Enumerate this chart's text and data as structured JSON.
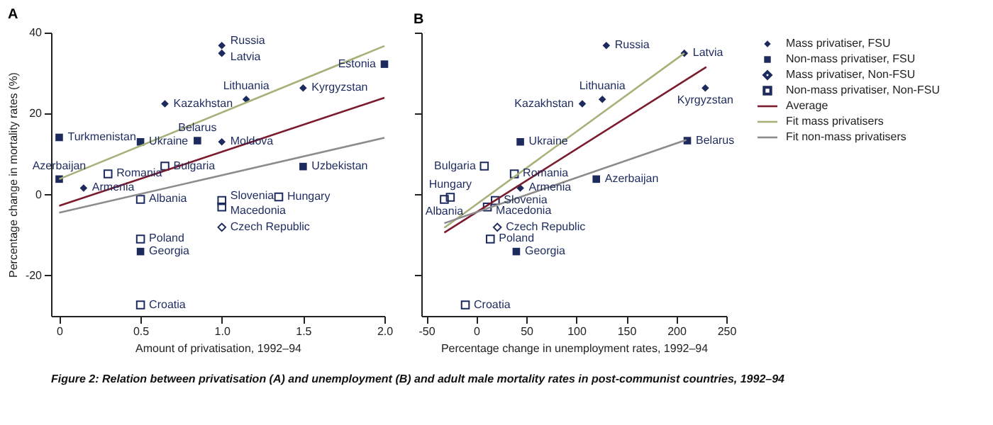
{
  "chart_data": [
    {
      "type": "scatter",
      "title": "A",
      "xlabel": "Amount of privatisation, 1992–94",
      "ylabel": "Percentage change in mortality rates (%)",
      "xlim": [
        -0.05,
        2.0
      ],
      "ylim": [
        -30,
        40
      ],
      "xticks": [
        0,
        0.5,
        {
          "value": 1.0,
          "label": "1.0"
        },
        1.5,
        {
          "value": 2.0,
          "label": "2.0"
        }
      ],
      "yticks": [
        -20,
        0,
        20,
        40
      ],
      "series": [
        {
          "color": "#1c2a5e",
          "marker": "diamond",
          "x": [
            1.0,
            1.0,
            1.15,
            1.5,
            0.65,
            1.0,
            0.15
          ],
          "values": [
            36.8,
            34.9,
            23.5,
            26.3,
            22.4,
            13.0,
            1.6
          ]
        },
        {
          "color": "#1c2a5e",
          "marker": "square",
          "x": [
            2.0,
            0,
            0.5,
            0.85,
            1.5,
            0,
            0.5
          ],
          "values": [
            32.2,
            14.1,
            13.0,
            13.3,
            6.9,
            3.8,
            -14.1
          ]
        },
        {
          "color": "#1c2a5e",
          "marker": "diamond",
          "x": [
            1.0
          ],
          "values": [
            -8.1
          ]
        },
        {
          "color": "#1c2a5e",
          "marker": "square",
          "x": [
            0.65,
            0.3,
            0.5,
            1.0,
            1.0,
            1.35,
            0.5,
            0.5
          ],
          "values": [
            7.0,
            5.1,
            -1.2,
            -1.5,
            -3.1,
            -0.6,
            -11.0,
            -27.3
          ]
        },
        {
          "type": "line",
          "color": "#7a1c2e",
          "x": [
            0,
            2.0
          ],
          "values": [
            -2.8,
            23.9
          ]
        },
        {
          "type": "line",
          "color": "#a8b07a",
          "x": [
            0,
            2.0
          ],
          "values": [
            3.8,
            36.7
          ]
        },
        {
          "type": "line",
          "color": "#8c8c8c",
          "x": [
            0,
            2.0
          ],
          "values": [
            -4.5,
            14.0
          ]
        }
      ],
      "annotations": [
        {
          "text": "Russia",
          "x": 1.0,
          "y": 36.8
        },
        {
          "text": "Latvia",
          "x": 1.0,
          "y": 34.9
        },
        {
          "text": "Estonia",
          "x": 2.0,
          "y": 32.2
        },
        {
          "text": "Lithuania",
          "x": 1.15,
          "y": 23.5
        },
        {
          "text": "Kyrgyzstan",
          "x": 1.5,
          "y": 26.3
        },
        {
          "text": "Kazakhstan",
          "x": 0.65,
          "y": 22.4
        },
        {
          "text": "Turkmenistan",
          "x": 0,
          "y": 14.1
        },
        {
          "text": "Ukraine",
          "x": 0.5,
          "y": 13.0
        },
        {
          "text": "Belarus",
          "x": 0.85,
          "y": 13.3
        },
        {
          "text": "Moldova",
          "x": 1.0,
          "y": 13.0
        },
        {
          "text": "Bulgaria",
          "x": 0.65,
          "y": 7.0
        },
        {
          "text": "Uzbekistan",
          "x": 1.5,
          "y": 6.9
        },
        {
          "text": "Romania",
          "x": 0.3,
          "y": 5.1
        },
        {
          "text": "Azerbaijan",
          "x": 0,
          "y": 3.8
        },
        {
          "text": "Armenia",
          "x": 0.15,
          "y": 1.6
        },
        {
          "text": "Albania",
          "x": 0.5,
          "y": -1.2
        },
        {
          "text": "Slovenia",
          "x": 1.0,
          "y": -1.5
        },
        {
          "text": "Macedonia",
          "x": 1.0,
          "y": -3.1
        },
        {
          "text": "Hungary",
          "x": 1.35,
          "y": -0.6
        },
        {
          "text": "Czech Republic",
          "x": 1.0,
          "y": -8.1
        },
        {
          "text": "Poland",
          "x": 0.5,
          "y": -11.0
        },
        {
          "text": "Georgia",
          "x": 0.5,
          "y": -14.1
        },
        {
          "text": "Croatia",
          "x": 0.5,
          "y": -27.3
        },
        "Figure 2: Relation between privatisation (A) and unemployment (B) and adult male mortality rates in post-communist countries, 1992–94"
      ]
    },
    {
      "type": "scatter",
      "title": "B",
      "xlabel": "Percentage change in unemployment rates, 1992–94",
      "xlim": [
        -55,
        250
      ],
      "ylim": [
        -30,
        40
      ],
      "xticks": [
        -50,
        0,
        50,
        100,
        150,
        200,
        250
      ],
      "yticks": [
        -20,
        0,
        20,
        40
      ],
      "tick_labels": "x",
      "legend": "right",
      "series": [
        {
          "name": "Mass privatiser, FSU",
          "color": "#1c2a5e",
          "marker": "diamond",
          "x": [
            130,
            208,
            126,
            229,
            106,
            44
          ],
          "values": [
            36.8,
            34.9,
            23.5,
            26.3,
            22.4,
            1.6
          ]
        },
        {
          "name": "Non-mass privatiser, FSU",
          "color": "#1c2a5e",
          "marker": "square",
          "x": [
            44,
            211,
            120,
            40
          ],
          "values": [
            13.0,
            13.3,
            3.8,
            -14.1
          ]
        },
        {
          "name": "Mass privatiser, Non-FSU",
          "color": "#1c2a5e",
          "marker": "diamond",
          "x": [
            21
          ],
          "values": [
            -8.1
          ]
        },
        {
          "name": "Non-mass privatiser, Non-FSU",
          "color": "#1c2a5e",
          "marker": "square",
          "x": [
            8,
            38,
            -26,
            -32,
            19,
            11,
            14,
            -11
          ],
          "values": [
            7.0,
            5.1,
            -0.7,
            -1.2,
            -1.5,
            -3.1,
            -11.0,
            -27.3
          ]
        },
        {
          "name": "Average",
          "type": "line",
          "color": "#7a1c2e",
          "x": [
            -32,
            230
          ],
          "values": [
            -9.4,
            31.5
          ]
        },
        {
          "name": "Fit mass privatisers",
          "type": "line",
          "color": "#a8b07a",
          "x": [
            -32,
            208
          ],
          "values": [
            -8.2,
            34.9
          ]
        },
        {
          "name": "Fit non-mass privatisers",
          "type": "line",
          "color": "#8c8c8c",
          "x": [
            -32,
            210
          ],
          "values": [
            -7.1,
            13.5
          ]
        }
      ],
      "annotations": [
        {
          "text": "Russia",
          "x": 130,
          "y": 36.8
        },
        {
          "text": "Latvia",
          "x": 208,
          "y": 34.9
        },
        {
          "text": "Lithuania",
          "x": 126,
          "y": 23.5
        },
        {
          "text": "Kazakhstan",
          "x": 106,
          "y": 22.4
        },
        {
          "text": "Kyrgyzstan",
          "x": 229,
          "y": 26.3
        },
        {
          "text": "Ukraine",
          "x": 44,
          "y": 13.0
        },
        {
          "text": "Belarus",
          "x": 211,
          "y": 13.3
        },
        {
          "text": "Bulgaria",
          "x": 8,
          "y": 7.0
        },
        {
          "text": "Romania",
          "x": 38,
          "y": 5.1
        },
        {
          "text": "Azerbaijan",
          "x": 120,
          "y": 3.8
        },
        {
          "text": "Armenia",
          "x": 44,
          "y": 1.6
        },
        {
          "text": "Hungary",
          "x": -26,
          "y": -0.7
        },
        {
          "text": "Albania",
          "x": -32,
          "y": -1.2
        },
        {
          "text": "Slovenia",
          "x": 19,
          "y": -1.5
        },
        {
          "text": "Macedonia",
          "x": 11,
          "y": -3.1
        },
        {
          "text": "Czech Republic",
          "x": 21,
          "y": -8.1
        },
        {
          "text": "Poland",
          "x": 14,
          "y": -11.0
        },
        {
          "text": "Georgia",
          "x": 40,
          "y": -14.1
        },
        {
          "text": "Croatia",
          "x": -11,
          "y": -27.3
        }
      ]
    }
  ]
}
